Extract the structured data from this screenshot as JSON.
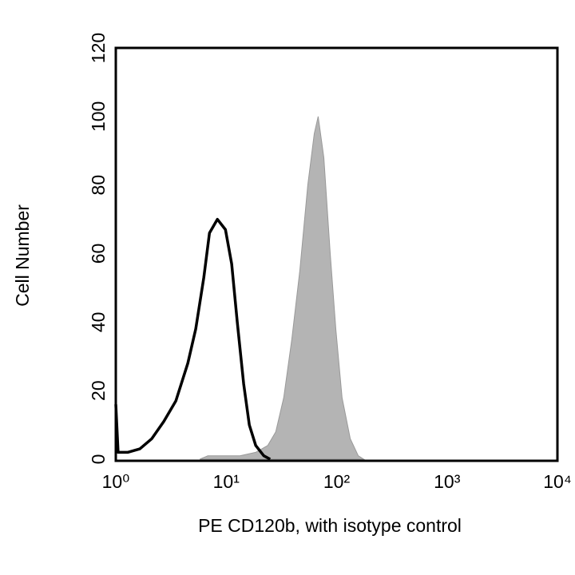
{
  "chart_data": {
    "type": "line",
    "x_label": "PE CD120b, with isotype control",
    "y_label": "Cell Number",
    "xscale": "log",
    "xlim": [
      1,
      10000
    ],
    "ylim": [
      0,
      120
    ],
    "xticks": [
      {
        "value": 1,
        "label": "10⁰"
      },
      {
        "value": 10,
        "label": "10¹"
      },
      {
        "value": 100,
        "label": "10²"
      },
      {
        "value": 1000,
        "label": "10³"
      },
      {
        "value": 10000,
        "label": "10⁴"
      }
    ],
    "yticks": [
      0,
      20,
      40,
      60,
      80,
      100,
      120
    ],
    "grid": false,
    "series": [
      {
        "color": "#b4b4b4",
        "filled": true,
        "x": [
          5.77,
          6.81,
          13.3,
          18.5,
          23.8,
          28.1,
          33.2,
          39.3,
          46.4,
          54.8,
          62.7,
          68.1,
          76.6,
          87.5,
          98.4,
          112,
          133,
          157,
          176
        ],
        "values": [
          0,
          1,
          1,
          2,
          4,
          8,
          18,
          35,
          55,
          80,
          95,
          100,
          88,
          60,
          38,
          18,
          6,
          1,
          0
        ]
      },
      {
        "color": "#000000",
        "filled": false,
        "x": [
          1,
          1.05,
          1.28,
          1.65,
          2.12,
          2.72,
          3.5,
          4.49,
          5.3,
          6.27,
          7.05,
          8.32,
          9.84,
          11.2,
          12.6,
          14.4,
          16.2,
          18.5,
          21.9,
          25.0
        ],
        "values": [
          16,
          2,
          2,
          3,
          6,
          11,
          17,
          28,
          38,
          53,
          66,
          70,
          67,
          57,
          40,
          22,
          10,
          4,
          1,
          0
        ]
      }
    ]
  }
}
